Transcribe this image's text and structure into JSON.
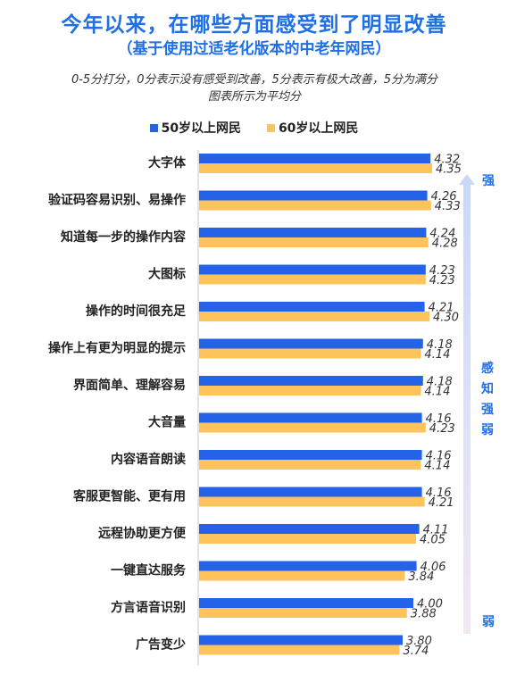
{
  "header": {
    "title": "今年以来，在哪些方面感受到了明显改善",
    "subtitle": "（基于使用过适老化版本的中老年网民）",
    "note_line1": "0-5分打分，0分表示没有感受到改善，5分表示有极大改善，5分为满分",
    "note_line2": "图表所示为平均分"
  },
  "side": {
    "strong": "强",
    "label": "感知强弱",
    "weak": "弱"
  },
  "colors": {
    "series_50": "#2463e8",
    "series_60": "#ffc35c",
    "accent": "#1f6fe6"
  },
  "chart_data": {
    "type": "bar",
    "orientation": "horizontal",
    "categories": [
      "大字体",
      "验证码容易识别、易操作",
      "知道每一步的操作内容",
      "大图标",
      "操作的时间很充足",
      "操作上有更为明显的提示",
      "界面简单、理解容易",
      "大音量",
      "内容语音朗读",
      "客服更智能、更有用",
      "远程协助更方便",
      "一键直达服务",
      "方言语音识别",
      "广告变少"
    ],
    "series": [
      {
        "name": "50岁以上网民",
        "values": [
          "4.32",
          "4.26",
          "4.24",
          "4.23",
          "4.21",
          "4.18",
          "4.18",
          "4.16",
          "4.16",
          "4.16",
          "4.11",
          "4.06",
          "4.00",
          "3.80"
        ]
      },
      {
        "name": "60岁以上网民",
        "values": [
          "4.35",
          "4.33",
          "4.28",
          "4.23",
          "4.30",
          "4.14",
          "4.14",
          "4.23",
          "4.14",
          "4.21",
          "4.05",
          "3.84",
          "3.88",
          "3.74"
        ]
      }
    ],
    "xlim": [
      0,
      5
    ],
    "legend": "top-center",
    "grid": false
  }
}
